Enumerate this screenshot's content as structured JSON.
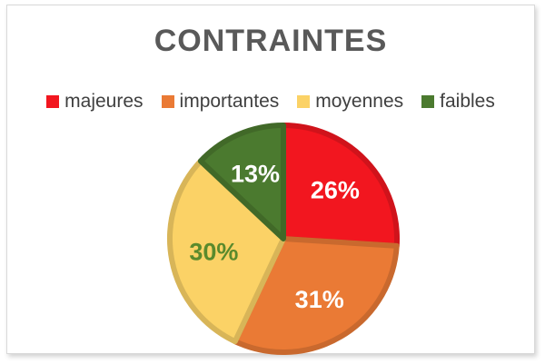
{
  "chart_data": {
    "type": "pie",
    "title": "CONTRAINTES",
    "categories": [
      "majeures",
      "importantes",
      "moyennes",
      "faibles"
    ],
    "values": [
      26,
      31,
      30,
      13
    ],
    "labels": [
      "26%",
      "31%",
      "30%",
      "13%"
    ],
    "colors": [
      "#f2161f",
      "#ea7a35",
      "#fbd266",
      "#4b7a2f"
    ],
    "label_colors": [
      "#ffffff",
      "#ffffff",
      "#5a8a2c",
      "#ffffff"
    ],
    "legend_position": "top"
  }
}
